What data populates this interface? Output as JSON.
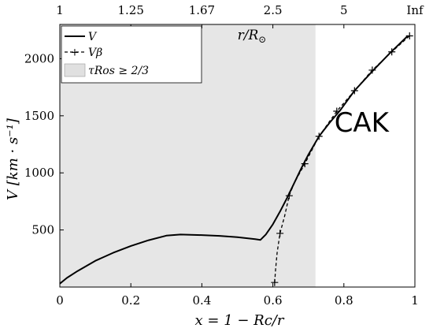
{
  "chart_data": {
    "type": "line",
    "xlabel": "x = 1 − Rc/r",
    "ylabel": "V [km · s⁻¹]",
    "top_axis_label": "r/R⊙",
    "xlim": [
      0,
      1
    ],
    "ylim": [
      0,
      2300
    ],
    "x_ticks": [
      0,
      0.2,
      0.4,
      0.6,
      0.8,
      1
    ],
    "x_tick_labels": [
      "0",
      "0.2",
      "0.4",
      "0.6",
      "0.8",
      "1"
    ],
    "y_ticks": [
      500,
      1000,
      1500,
      2000
    ],
    "y_tick_labels": [
      "500",
      "1000",
      "1500",
      "2000"
    ],
    "top_ticks": [
      0,
      0.2,
      0.4,
      0.6,
      0.8,
      1
    ],
    "top_tick_labels": [
      "1",
      "1.25",
      "1.67",
      "2.5",
      "5",
      "Inf"
    ],
    "grid": false,
    "legend_position": "top-left",
    "shaded_region": {
      "x0": 0,
      "x1": 0.72,
      "label": "τRos ≥ 2/3",
      "color": "#e6e6e6"
    },
    "annotation": {
      "text": "CAK",
      "x": 0.85,
      "y": 1360
    },
    "series": [
      {
        "name": "V",
        "style": "solid",
        "color": "#000000",
        "x": [
          0,
          0.02,
          0.05,
          0.1,
          0.15,
          0.2,
          0.25,
          0.3,
          0.34,
          0.4,
          0.45,
          0.5,
          0.55,
          0.565,
          0.58,
          0.6,
          0.62,
          0.64,
          0.66,
          0.68,
          0.7,
          0.73,
          0.76,
          0.79,
          0.83,
          0.88,
          0.93,
          0.98
        ],
        "values": [
          30,
          80,
          140,
          230,
          300,
          360,
          410,
          450,
          460,
          455,
          448,
          437,
          420,
          413,
          460,
          550,
          660,
          780,
          910,
          1040,
          1160,
          1320,
          1440,
          1550,
          1720,
          1890,
          2050,
          2200
        ]
      },
      {
        "name": "Vβ",
        "style": "dashed",
        "marker": "+",
        "color": "#000000",
        "x": [
          0.605,
          0.6075,
          0.612,
          0.62,
          0.633,
          0.646,
          0.66,
          0.69,
          0.73,
          0.78,
          0.83,
          0.88,
          0.935,
          0.985
        ],
        "values": [
          40,
          150,
          300,
          470,
          620,
          800,
          910,
          1080,
          1320,
          1540,
          1720,
          1900,
          2060,
          2200
        ],
        "marker_x": [
          0.605,
          0.62,
          0.646,
          0.69,
          0.73,
          0.78,
          0.83,
          0.88,
          0.935,
          0.985
        ],
        "marker_values": [
          40,
          470,
          800,
          1080,
          1320,
          1540,
          1720,
          1900,
          2060,
          2200
        ]
      }
    ]
  },
  "legend": {
    "v_label": "V",
    "vbeta_label": "Vβ",
    "shade_label": "τRos ≥ 2/3"
  }
}
